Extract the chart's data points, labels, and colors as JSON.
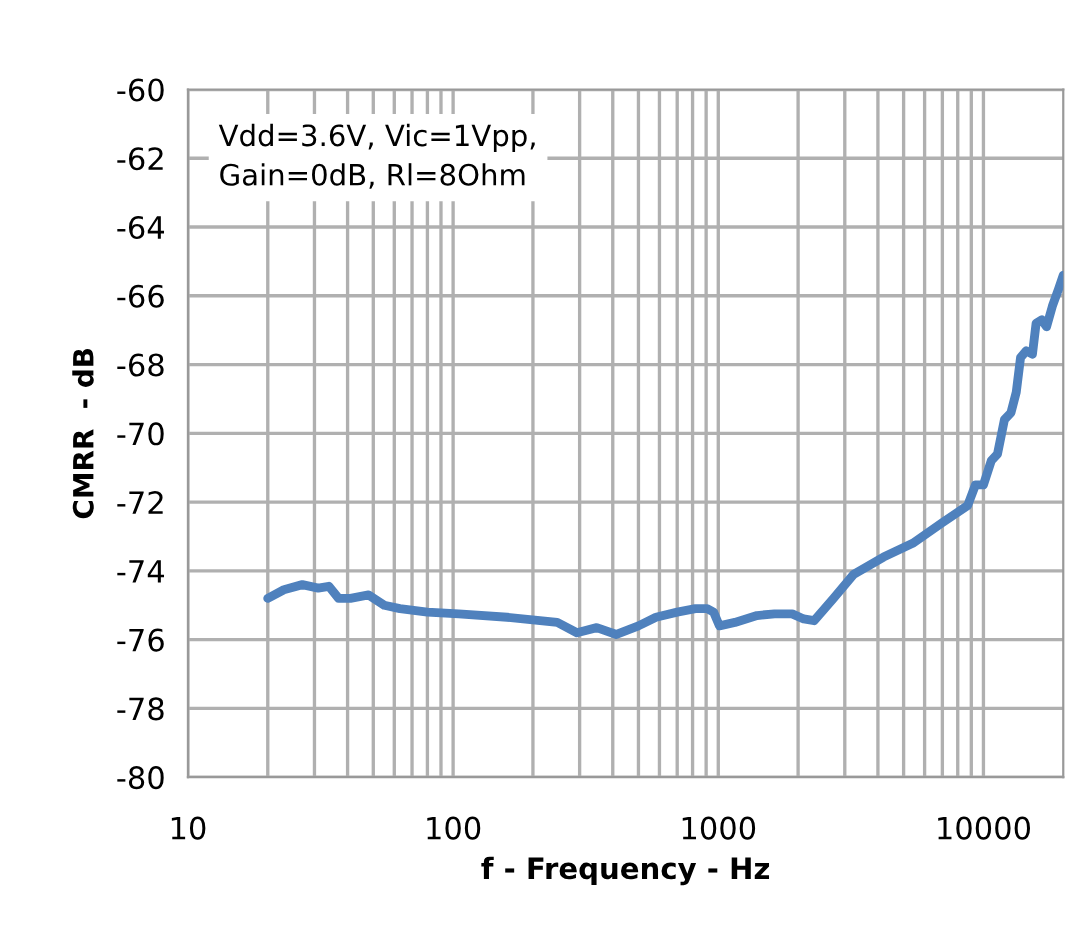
{
  "chart_data": {
    "type": "line",
    "xlabel": "f - Frequency - Hz",
    "ylabel": "CMRR  - dB",
    "log": "x",
    "grid": true,
    "marker": "none",
    "line_style": "solid",
    "annotations": [
      "Vdd=3.6V, Vic=1Vpp,\nGain=0dB, Rl=8Ohm"
    ],
    "xlim": [
      10,
      20000
    ],
    "ylim": [
      -80,
      -60
    ],
    "xticks": [
      10,
      {
        "value": 20,
        "label": null
      },
      {
        "value": 30,
        "label": null
      },
      {
        "value": 40,
        "label": null
      },
      {
        "value": 50,
        "label": null
      },
      {
        "value": 60,
        "label": null
      },
      {
        "value": 70,
        "label": null
      },
      {
        "value": 80,
        "label": null
      },
      {
        "value": 90,
        "label": null
      },
      100,
      {
        "value": 200,
        "label": null
      },
      {
        "value": 300,
        "label": null
      },
      {
        "value": 400,
        "label": null
      },
      {
        "value": 500,
        "label": null
      },
      {
        "value": 600,
        "label": null
      },
      {
        "value": 700,
        "label": null
      },
      {
        "value": 800,
        "label": null
      },
      {
        "value": 900,
        "label": null
      },
      1000,
      {
        "value": 2000,
        "label": null
      },
      {
        "value": 3000,
        "label": null
      },
      {
        "value": 4000,
        "label": null
      },
      {
        "value": 5000,
        "label": null
      },
      {
        "value": 6000,
        "label": null
      },
      {
        "value": 7000,
        "label": null
      },
      {
        "value": 8000,
        "label": null
      },
      {
        "value": 9000,
        "label": null
      },
      10000
    ],
    "yticks": [
      -80,
      -78,
      -76,
      -74,
      -72,
      -70,
      -68,
      -66,
      -64,
      -62,
      -60
    ],
    "series": [
      {
        "color": "#4f81bd",
        "x": [
          20,
          23,
          27,
          31,
          34,
          37,
          41,
          48,
          55,
          63,
          80,
          105,
          160,
          247,
          293,
          348,
          413,
          500,
          582,
          700,
          820,
          908,
          960,
          1010,
          1155,
          1400,
          1630,
          1900,
          2100,
          2300,
          2720,
          3240,
          4200,
          5410,
          7000,
          8720,
          9330,
          10000,
          10700,
          11300,
          12000,
          12700,
          13300,
          13800,
          14500,
          15300,
          15800,
          16600,
          17300,
          18200,
          19200,
          20000
        ],
        "values": [
          -74.8,
          -74.55,
          -74.4,
          -74.5,
          -74.45,
          -74.8,
          -74.8,
          -74.7,
          -75.0,
          -75.1,
          -75.2,
          -75.25,
          -75.35,
          -75.5,
          -75.8,
          -75.65,
          -75.85,
          -75.6,
          -75.35,
          -75.2,
          -75.1,
          -75.1,
          -75.2,
          -75.6,
          -75.5,
          -75.3,
          -75.25,
          -75.25,
          -75.4,
          -75.45,
          -74.8,
          -74.1,
          -73.6,
          -73.2,
          -72.6,
          -72.1,
          -71.5,
          -71.5,
          -70.8,
          -70.6,
          -69.6,
          -69.4,
          -68.8,
          -67.8,
          -67.6,
          -67.7,
          -66.8,
          -66.7,
          -66.9,
          -66.3,
          -65.8,
          -65.4
        ]
      }
    ]
  }
}
